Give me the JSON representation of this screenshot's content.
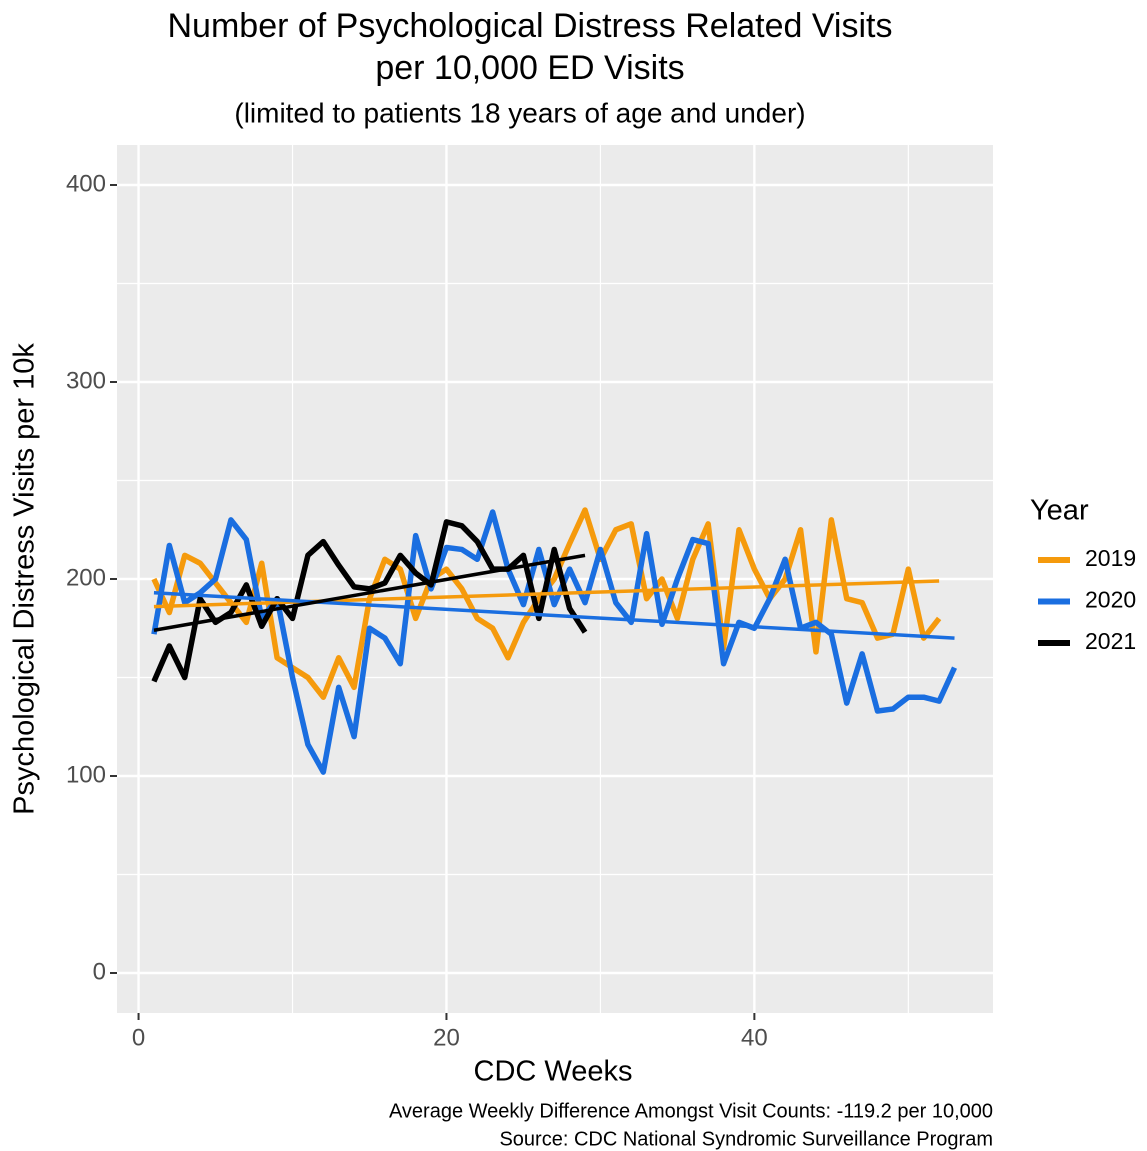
{
  "chart_data": {
    "type": "line",
    "title": [
      "Number of Psychological Distress Related Visits",
      "per 10,000 ED Visits"
    ],
    "subtitle": "(limited to patients 18 years of age and under)",
    "x_label": "CDC Weeks",
    "y_label": "Psychological Distress Visits per 10k",
    "caption": [
      "Average Weekly Difference Amongst Visit Counts: -119.2 per 10,000",
      "Source: CDC National Syndromic Surveillance Program"
    ],
    "legend_title": "Year",
    "legend_position": "right",
    "grid": true,
    "xlim": [
      -1.4,
      55.5
    ],
    "ylim": [
      -20.3,
      420.3
    ],
    "xticks": [
      0,
      20,
      40
    ],
    "yticks": [
      0,
      100,
      200,
      300,
      400
    ],
    "series": [
      {
        "name": "2019",
        "color": "#f59a0c",
        "x": [
          1,
          2,
          3,
          4,
          5,
          6,
          7,
          8,
          9,
          10,
          11,
          12,
          13,
          14,
          15,
          16,
          17,
          18,
          19,
          20,
          21,
          22,
          23,
          24,
          25,
          26,
          27,
          28,
          29,
          30,
          31,
          32,
          33,
          34,
          35,
          36,
          37,
          38,
          39,
          40,
          41,
          42,
          43,
          44,
          45,
          46,
          47,
          48,
          49,
          50,
          51,
          52
        ],
        "values": [
          200,
          183,
          212,
          208,
          198,
          188,
          178,
          208,
          160,
          155,
          150,
          140,
          160,
          145,
          190,
          210,
          205,
          180,
          200,
          205,
          195,
          180,
          175,
          160,
          178,
          190,
          200,
          218,
          235,
          210,
          225,
          228,
          190,
          200,
          180,
          210,
          228,
          165,
          225,
          205,
          190,
          200,
          225,
          163,
          230,
          190,
          188,
          170,
          172,
          205,
          170,
          180
        ],
        "trend": {
          "x": [
            1,
            52
          ],
          "values": [
            186,
            199
          ]
        }
      },
      {
        "name": "2020",
        "color": "#1a6ee0",
        "x": [
          1,
          2,
          3,
          4,
          5,
          6,
          7,
          8,
          9,
          10,
          11,
          12,
          13,
          14,
          15,
          16,
          17,
          18,
          19,
          20,
          21,
          22,
          23,
          24,
          25,
          26,
          27,
          28,
          29,
          30,
          31,
          32,
          33,
          34,
          35,
          36,
          37,
          38,
          39,
          40,
          41,
          42,
          43,
          44,
          45,
          46,
          47,
          48,
          49,
          50,
          51,
          52,
          53
        ],
        "values": [
          172,
          217,
          188,
          193,
          200,
          230,
          220,
          180,
          190,
          150,
          116,
          102,
          145,
          120,
          175,
          170,
          157,
          222,
          195,
          216,
          215,
          210,
          234,
          205,
          187,
          215,
          187,
          205,
          188,
          215,
          188,
          178,
          223,
          177,
          200,
          220,
          218,
          157,
          178,
          175,
          190,
          210,
          175,
          178,
          172,
          137,
          162,
          133,
          134,
          140,
          140,
          138,
          155
        ],
        "trend": {
          "x": [
            1,
            53
          ],
          "values": [
            193,
            170
          ]
        }
      },
      {
        "name": "2021",
        "color": "#000000",
        "x": [
          1,
          2,
          3,
          4,
          5,
          6,
          7,
          8,
          9,
          10,
          11,
          12,
          13,
          14,
          15,
          16,
          17,
          18,
          19,
          20,
          21,
          22,
          23,
          24,
          25,
          26,
          27,
          28,
          29
        ],
        "values": [
          148,
          166,
          150,
          190,
          178,
          183,
          197,
          176,
          190,
          180,
          212,
          219,
          207,
          196,
          195,
          198,
          212,
          203,
          197,
          229,
          227,
          219,
          205,
          205,
          212,
          180,
          215,
          185,
          173
        ],
        "trend": {
          "x": [
            1,
            29
          ],
          "values": [
            174,
            212
          ]
        }
      }
    ]
  }
}
